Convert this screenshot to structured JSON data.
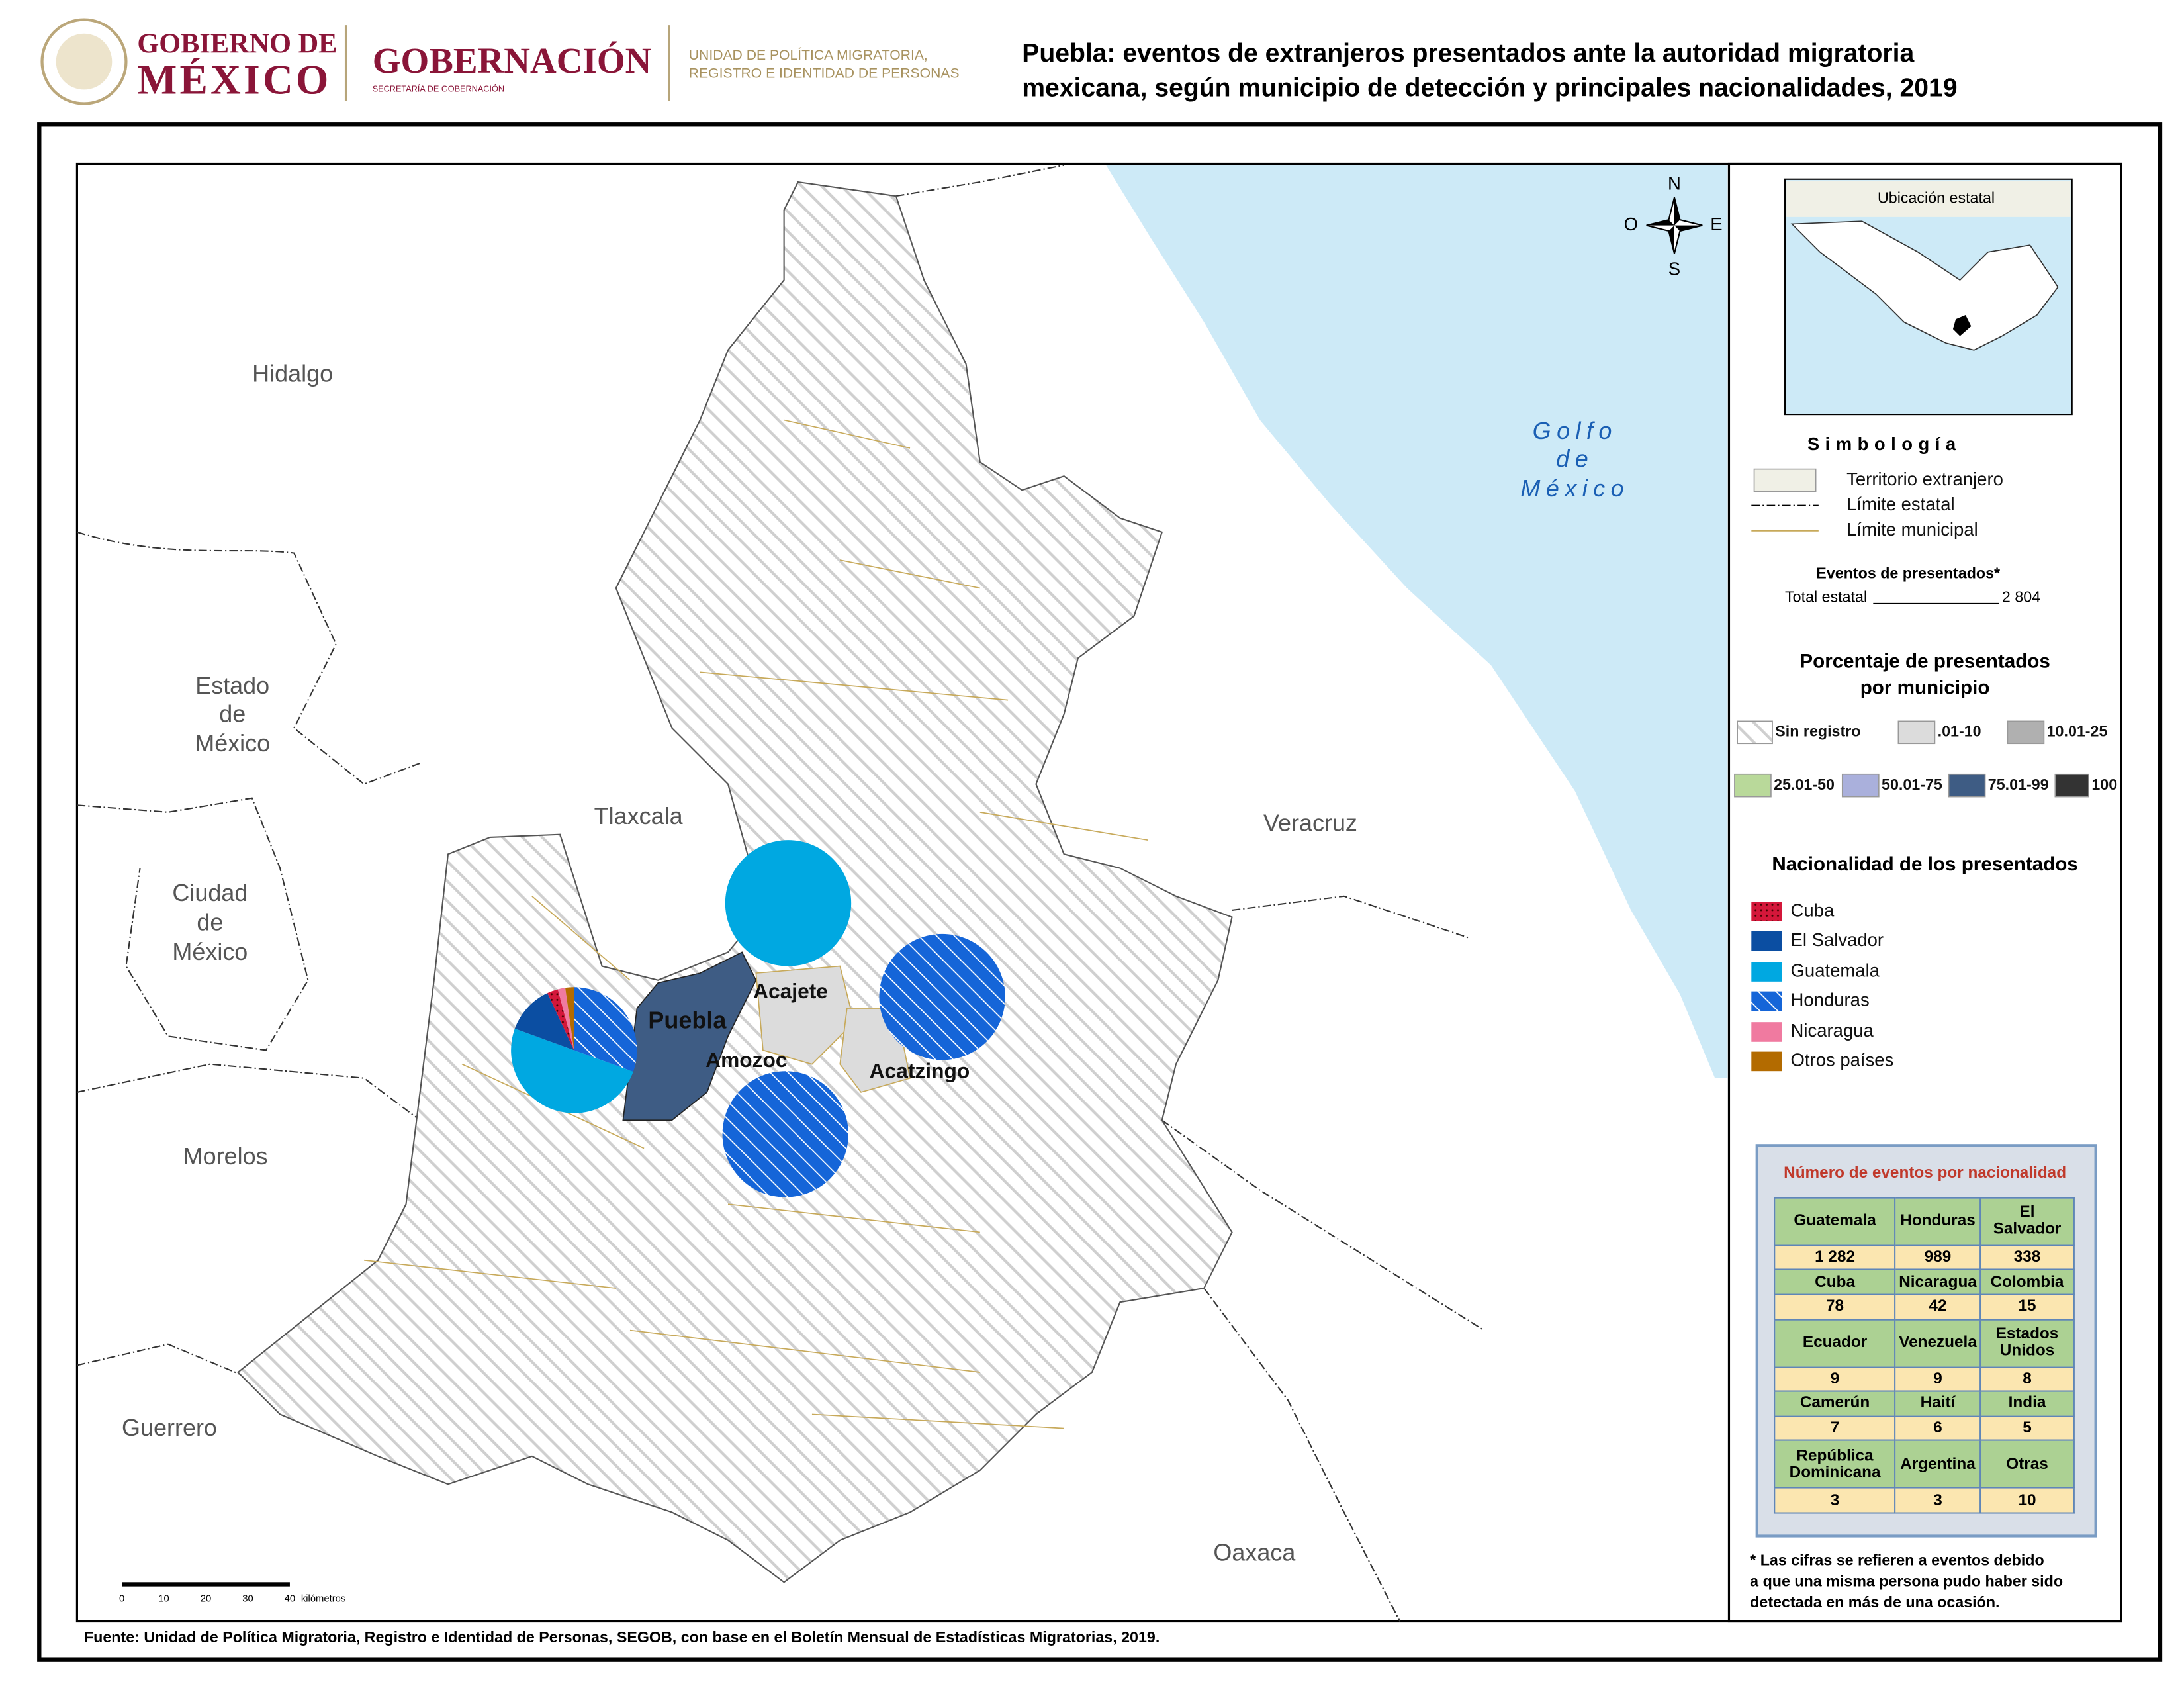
{
  "header": {
    "gob_line1": "GOBIERNO DE",
    "gob_line2": "MÉXICO",
    "gobernacion": "GOBERNACIÓN",
    "secretaria": "SECRETARÍA DE GOBERNACIÓN",
    "unidad_line1": "UNIDAD DE POLÍTICA MIGRATORIA,",
    "unidad_line2": "REGISTRO E IDENTIDAD DE PERSONAS",
    "title_line1": "Puebla: eventos de extranjeros presentados ante la autoridad migratoria",
    "title_line2": "mexicana, según municipio de detección y principales nacionalidades, 2019"
  },
  "map": {
    "neighbors": {
      "hidalgo": "Hidalgo",
      "estado_mexico": [
        "Estado",
        "de",
        "México"
      ],
      "tlaxcala": "Tlaxcala",
      "veracruz": "Veracruz",
      "cdmx": [
        "Ciudad",
        "de",
        "México"
      ],
      "morelos": "Morelos",
      "guerrero": "Guerrero",
      "oaxaca": "Oaxaca",
      "golfo": [
        "Golfo",
        "de",
        "México"
      ]
    },
    "municipalities": {
      "puebla": "Puebla",
      "acajete": "Acajete",
      "amozoc": "Amozoc",
      "acatzingo": "Acatzingo"
    },
    "compass": {
      "n": "N",
      "o": "O",
      "e": "E",
      "s": "S"
    },
    "scale": {
      "ticks": [
        "0",
        "10",
        "20",
        "30",
        "40"
      ],
      "unit": "kilómetros"
    }
  },
  "inset": {
    "title": "Ubicación estatal"
  },
  "legend": {
    "title": "Simbología",
    "territorio": "Territorio extranjero",
    "limite_estatal": "Límite estatal",
    "limite_municipal": "Límite municipal",
    "eventos_title": "Eventos de presentados*",
    "total_label": "Total estatal",
    "total_value": "2 804",
    "porcentaje_line1": "Porcentaje de presentados",
    "porcentaje_line2": "por municipio",
    "porcentaje_items": [
      "Sin registro",
      ".01-10",
      "10.01-25",
      "25.01-50",
      "50.01-75",
      "75.01-99",
      "100"
    ],
    "nacionalidad_title": "Nacionalidad de los presentados",
    "nacionalidad_items": [
      "Cuba",
      "El Salvador",
      "Guatemala",
      "Honduras",
      "Nicaragua",
      "Otros países"
    ]
  },
  "table": {
    "title": "Número de eventos por nacionalidad",
    "rows": [
      [
        "Guatemala",
        "Honduras",
        "El Salvador"
      ],
      [
        "1 282",
        "989",
        "338"
      ],
      [
        "Cuba",
        "Nicaragua",
        "Colombia"
      ],
      [
        "78",
        "42",
        "15"
      ],
      [
        "Ecuador",
        "Venezuela",
        "Estados Unidos"
      ],
      [
        "9",
        "9",
        "8"
      ],
      [
        "Camerún",
        "Haití",
        "India"
      ],
      [
        "7",
        "6",
        "5"
      ],
      [
        "República Dominicana",
        "Argentina",
        "Otras"
      ],
      [
        "3",
        "3",
        "10"
      ]
    ]
  },
  "footnote": [
    "* Las cifras se refieren a eventos debido",
    "a que una misma persona pudo haber sido",
    "detectada en más de una ocasión."
  ],
  "source": "Fuente: Unidad de Política Migratoria, Registro e Identidad de Personas, SEGOB, con base en el Boletín Mensual de Estadísticas Migratorias, 2019."
}
